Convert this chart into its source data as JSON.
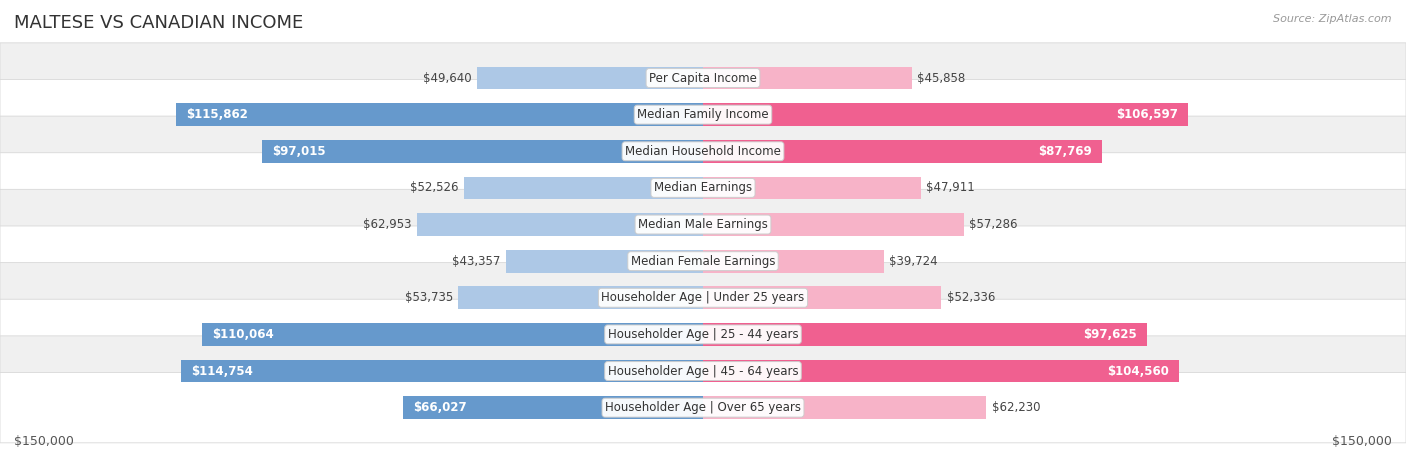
{
  "title": "MALTESE VS CANADIAN INCOME",
  "source": "Source: ZipAtlas.com",
  "categories": [
    "Per Capita Income",
    "Median Family Income",
    "Median Household Income",
    "Median Earnings",
    "Median Male Earnings",
    "Median Female Earnings",
    "Householder Age | Under 25 years",
    "Householder Age | 25 - 44 years",
    "Householder Age | 45 - 64 years",
    "Householder Age | Over 65 years"
  ],
  "maltese_values": [
    49640,
    115862,
    97015,
    52526,
    62953,
    43357,
    53735,
    110064,
    114754,
    66027
  ],
  "canadian_values": [
    45858,
    106597,
    87769,
    47911,
    57286,
    39724,
    52336,
    97625,
    104560,
    62230
  ],
  "maltese_labels": [
    "$49,640",
    "$115,862",
    "$97,015",
    "$52,526",
    "$62,953",
    "$43,357",
    "$53,735",
    "$110,064",
    "$114,754",
    "$66,027"
  ],
  "canadian_labels": [
    "$45,858",
    "$106,597",
    "$87,769",
    "$47,911",
    "$57,286",
    "$39,724",
    "$52,336",
    "$97,625",
    "$104,560",
    "$62,230"
  ],
  "max_value": 150000,
  "maltese_color_light": "#adc8e6",
  "maltese_color_dark": "#6699cc",
  "canadian_color_light": "#f7b3c8",
  "canadian_color_dark": "#f06090",
  "bg_color": "#ffffff",
  "row_colors": [
    "#f0f0f0",
    "#ffffff"
  ],
  "bar_height": 0.62,
  "title_fontsize": 13,
  "source_fontsize": 8,
  "label_fontsize": 8.5,
  "cat_fontsize": 8.5,
  "legend_fontsize": 9.5,
  "inside_label_threshold": 65000
}
